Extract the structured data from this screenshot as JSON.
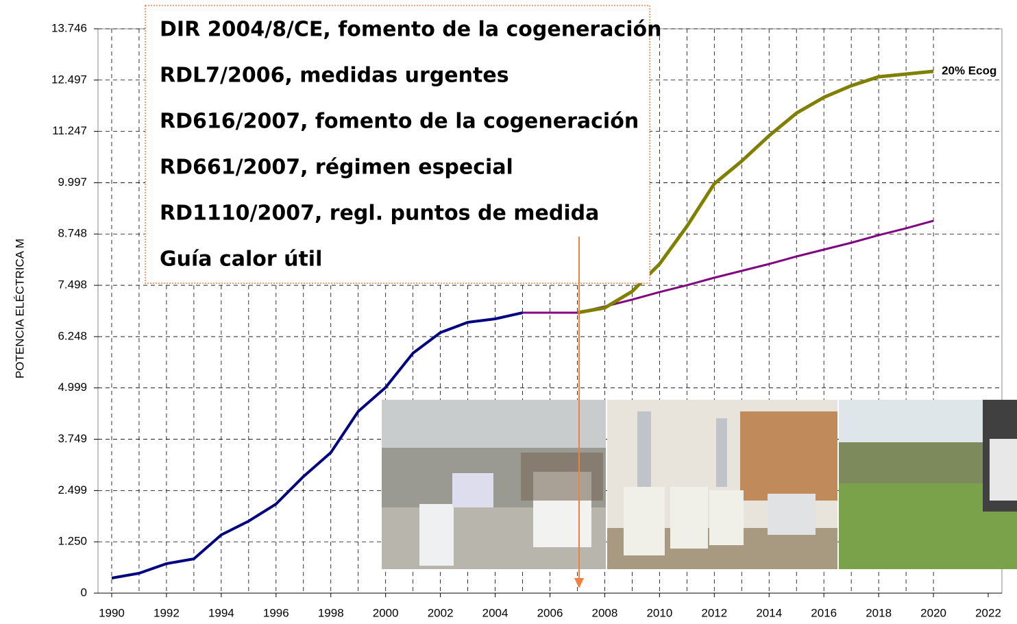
{
  "chart_data": {
    "type": "line",
    "ylabel": "POTENCIA ELÉCTRICA M",
    "annotations": [
      "DIR 2004/8/CE, fomento de la cogeneración",
      "RDL7/2006, medidas urgentes",
      "RD616/2007, fomento de la cogeneración",
      "RD661/2007, régimen especial",
      "RD1110/2007, regl. puntos de medida",
      "Guía calor útil"
    ],
    "x": [
      1990,
      1991,
      1992,
      1993,
      1994,
      1995,
      1996,
      1997,
      1998,
      1999,
      2000,
      2001,
      2002,
      2003,
      2004,
      2005,
      2006,
      2007,
      2008,
      2009,
      2010,
      2011,
      2012,
      2013,
      2014,
      2015,
      2016,
      2017,
      2018,
      2019,
      2020
    ],
    "series": [
      {
        "color": "#000080",
        "values": [
          367,
          484,
          718,
          835,
          1420,
          1754,
          2171,
          2840,
          3424,
          4426,
          5011,
          5846,
          6347,
          6598,
          6681,
          6831,
          null,
          null,
          null,
          null,
          null,
          null,
          null,
          null,
          null,
          null,
          null,
          null,
          null,
          null,
          null
        ]
      },
      {
        "color": "#800080",
        "values": [
          null,
          null,
          null,
          null,
          null,
          null,
          null,
          null,
          null,
          null,
          null,
          null,
          null,
          null,
          null,
          6831,
          6831,
          6831,
          6982,
          7149,
          7333,
          7500,
          7683,
          7850,
          8017,
          8201,
          8368,
          8535,
          8719,
          8886,
          9070
        ]
      },
      {
        "name": "20% Ecog",
        "color": "#808000",
        "values": [
          null,
          null,
          null,
          null,
          null,
          null,
          null,
          null,
          null,
          null,
          null,
          null,
          null,
          null,
          null,
          null,
          null,
          6831,
          6948,
          7349,
          8017,
          8936,
          9972,
          10523,
          11141,
          11692,
          12076,
          12360,
          12577,
          12644,
          12711
        ]
      }
    ],
    "xlim": [
      1989.5,
      2022.5
    ],
    "xticks": [
      1990,
      1992,
      1994,
      1996,
      1998,
      2000,
      2002,
      2004,
      2006,
      2008,
      2010,
      2012,
      2014,
      2016,
      2018,
      2020,
      2022
    ],
    "ylim": [
      0,
      13746
    ],
    "yticks": [
      0,
      {
        "value": 1250,
        "label": "1.250"
      },
      {
        "value": 2499,
        "label": "2.499"
      },
      {
        "value": 3749,
        "label": "3.749"
      },
      {
        "value": 4999,
        "label": "4.999"
      },
      {
        "value": 6248,
        "label": "6.248"
      },
      {
        "value": 7498,
        "label": "7.498"
      },
      {
        "value": 8748,
        "label": "8.748"
      },
      {
        "value": 9997,
        "label": "9.997"
      },
      {
        "value": 11247,
        "label": "11.247"
      },
      {
        "value": 12497,
        "label": "12.497"
      },
      {
        "value": 13746,
        "label": "13.746"
      }
    ],
    "grid": true
  }
}
